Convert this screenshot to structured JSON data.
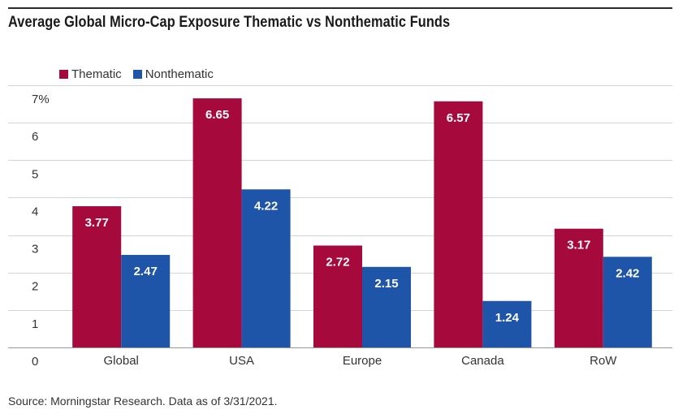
{
  "title": "Average Global Micro-Cap Exposure Thematic vs Nonthematic Funds",
  "source": "Source: Morningstar Research. Data as of 3/31/2021.",
  "colors": {
    "thematic": "#A6093B",
    "nonthematic": "#1F55A8"
  },
  "chart_data": {
    "type": "bar",
    "title": "Average Global Micro-Cap Exposure Thematic vs Nonthematic Funds",
    "categories": [
      "Global",
      "USA",
      "Europe",
      "Canada",
      "RoW"
    ],
    "series": [
      {
        "name": "Thematic",
        "values": [
          3.77,
          6.65,
          2.72,
          6.57,
          3.17
        ],
        "labels": [
          "3.77",
          "6.65",
          "2.72",
          "6.57",
          "3.17"
        ]
      },
      {
        "name": "Nonthematic",
        "values": [
          2.47,
          4.22,
          2.15,
          1.24,
          2.42
        ],
        "labels": [
          "2.47",
          "4.22",
          "2.15",
          "1.24",
          "2.42"
        ]
      }
    ],
    "yticks": [
      "0",
      "1",
      "2",
      "3",
      "4",
      "5",
      "6",
      "7%"
    ],
    "ylim": [
      0,
      7
    ],
    "xlabel": "",
    "ylabel": "",
    "legend": "top-left",
    "grid": true
  }
}
